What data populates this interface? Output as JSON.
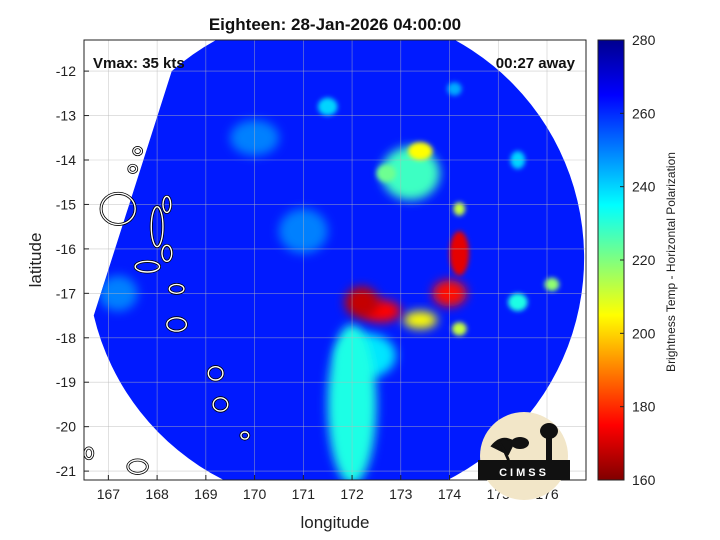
{
  "chart_data": {
    "type": "heatmap",
    "title": "Eighteen: 28-Jan-2026 04:00:00",
    "xlabel": "longitude",
    "ylabel": "latitude",
    "xlim": [
      166.5,
      176.8
    ],
    "ylim": [
      -21.2,
      -11.3
    ],
    "xticks": [
      "167",
      "168",
      "169",
      "170",
      "171",
      "172",
      "173",
      "174",
      "175",
      "176"
    ],
    "yticks": [
      "-12",
      "-13",
      "-14",
      "-15",
      "-16",
      "-17",
      "-18",
      "-19",
      "-20",
      "-21"
    ],
    "grid": true,
    "colorbar": {
      "label": "Brightness Temp - Horizontal Polarization",
      "range": [
        160,
        280
      ],
      "ticks": [
        "280",
        "260",
        "240",
        "220",
        "200",
        "180",
        "160"
      ],
      "colormap": "jet"
    },
    "annotations": {
      "vmax": "Vmax: 35 kts",
      "away": "00:27 away"
    },
    "swath": {
      "center": [
        171.8,
        -16.3
      ],
      "radius_deg": 5.1
    },
    "background_temp": 262,
    "features": [
      {
        "lon": 172.2,
        "lat": -17.2,
        "temp": 168,
        "rx": 0.35,
        "ry": 0.35
      },
      {
        "lon": 172.6,
        "lat": -17.4,
        "temp": 175,
        "rx": 0.4,
        "ry": 0.25
      },
      {
        "lon": 174.2,
        "lat": -16.1,
        "temp": 172,
        "rx": 0.2,
        "ry": 0.5
      },
      {
        "lon": 174.0,
        "lat": -17.0,
        "temp": 176,
        "rx": 0.35,
        "ry": 0.3
      },
      {
        "lon": 173.4,
        "lat": -17.6,
        "temp": 205,
        "rx": 0.35,
        "ry": 0.2
      },
      {
        "lon": 173.4,
        "lat": -13.8,
        "temp": 205,
        "rx": 0.25,
        "ry": 0.2
      },
      {
        "lon": 173.2,
        "lat": -14.3,
        "temp": 228,
        "rx": 0.6,
        "ry": 0.6
      },
      {
        "lon": 172.7,
        "lat": -14.3,
        "temp": 222,
        "rx": 0.2,
        "ry": 0.2
      },
      {
        "lon": 174.2,
        "lat": -15.1,
        "temp": 212,
        "rx": 0.12,
        "ry": 0.15
      },
      {
        "lon": 174.2,
        "lat": -17.8,
        "temp": 212,
        "rx": 0.15,
        "ry": 0.15
      },
      {
        "lon": 172.0,
        "lat": -19.5,
        "temp": 232,
        "rx": 0.5,
        "ry": 1.8
      },
      {
        "lon": 172.3,
        "lat": -18.4,
        "temp": 238,
        "rx": 0.6,
        "ry": 0.5
      },
      {
        "lon": 175.4,
        "lat": -17.2,
        "temp": 232,
        "rx": 0.2,
        "ry": 0.2
      },
      {
        "lon": 176.1,
        "lat": -16.8,
        "temp": 218,
        "rx": 0.15,
        "ry": 0.15
      },
      {
        "lon": 175.4,
        "lat": -14.0,
        "temp": 240,
        "rx": 0.15,
        "ry": 0.2
      },
      {
        "lon": 171.5,
        "lat": -12.8,
        "temp": 240,
        "rx": 0.2,
        "ry": 0.2
      },
      {
        "lon": 174.1,
        "lat": -12.4,
        "temp": 245,
        "rx": 0.15,
        "ry": 0.15
      },
      {
        "lon": 167.2,
        "lat": -17.0,
        "temp": 250,
        "rx": 0.4,
        "ry": 0.4
      },
      {
        "lon": 170.0,
        "lat": -13.5,
        "temp": 250,
        "rx": 0.5,
        "ry": 0.4
      },
      {
        "lon": 171.0,
        "lat": -15.6,
        "temp": 250,
        "rx": 0.5,
        "ry": 0.5
      }
    ],
    "islands": [
      {
        "lon": 167.2,
        "lat": -15.1,
        "rx": 0.35,
        "ry": 0.35
      },
      {
        "lon": 168.0,
        "lat": -15.5,
        "rx": 0.12,
        "ry": 0.45
      },
      {
        "lon": 167.8,
        "lat": -16.4,
        "rx": 0.25,
        "ry": 0.12
      },
      {
        "lon": 168.2,
        "lat": -16.1,
        "rx": 0.1,
        "ry": 0.18
      },
      {
        "lon": 168.4,
        "lat": -16.9,
        "rx": 0.15,
        "ry": 0.1
      },
      {
        "lon": 168.4,
        "lat": -17.7,
        "rx": 0.2,
        "ry": 0.15
      },
      {
        "lon": 167.6,
        "lat": -13.8,
        "rx": 0.08,
        "ry": 0.08
      },
      {
        "lon": 167.5,
        "lat": -14.2,
        "rx": 0.08,
        "ry": 0.08
      },
      {
        "lon": 168.2,
        "lat": -15.0,
        "rx": 0.08,
        "ry": 0.18
      },
      {
        "lon": 169.2,
        "lat": -18.8,
        "rx": 0.15,
        "ry": 0.15
      },
      {
        "lon": 169.3,
        "lat": -19.5,
        "rx": 0.15,
        "ry": 0.15
      },
      {
        "lon": 169.8,
        "lat": -20.2,
        "rx": 0.08,
        "ry": 0.08
      },
      {
        "lon": 167.6,
        "lat": -20.9,
        "rx": 0.2,
        "ry": 0.15
      },
      {
        "lon": 166.6,
        "lat": -20.6,
        "rx": 0.08,
        "ry": 0.12
      }
    ]
  },
  "logo": {
    "text": "CIMSS"
  }
}
